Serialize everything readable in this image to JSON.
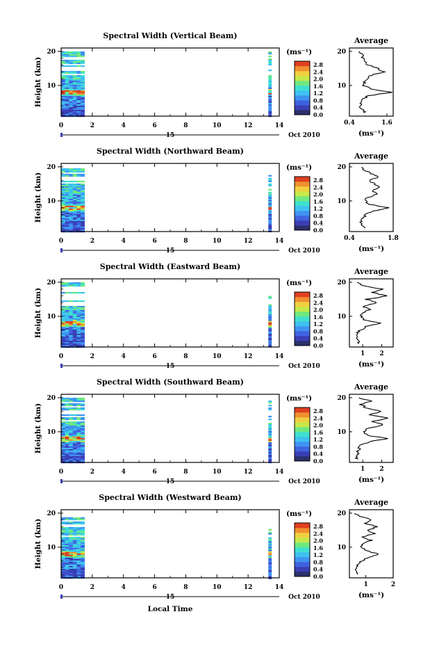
{
  "page": {
    "x_title": "Local Time",
    "shared": {
      "ylabel": "Height (km)",
      "yticks": [
        "20",
        "10"
      ],
      "xticks": [
        "0",
        "2",
        "4",
        "6",
        "8",
        "10",
        "12",
        "14"
      ],
      "day_label": "15",
      "date_label": "Oct 2010",
      "cb_title": "(ms⁻¹)",
      "cb_labels": [
        "2.8",
        "2.4",
        "2.0",
        "1.6",
        "1.2",
        "0.8",
        "0.4",
        "0.0"
      ],
      "avg_title": "Average",
      "avg_xlabel": "(ms⁻¹)"
    }
  },
  "colors": {
    "colormap": [
      "#2b2f6b",
      "#3a3fb5",
      "#3f63e0",
      "#3f93f0",
      "#3fc1f0",
      "#3fe0d0",
      "#70e880",
      "#c6e84a",
      "#f0d040",
      "#f09030",
      "#e04020"
    ]
  },
  "chart_data": [
    {
      "type": "heatmap",
      "title": "Spectral Width (Vertical Beam)",
      "xlabel": "Local Time",
      "ylabel": "Height (km)",
      "xlim": [
        0,
        14
      ],
      "ylim": [
        1,
        21
      ],
      "colorbar": {
        "range": [
          0.0,
          3.0
        ],
        "ticks": [
          0.0,
          0.4,
          0.8,
          1.2,
          1.6,
          2.0,
          2.4,
          2.8
        ]
      },
      "data_blocks": [
        {
          "x": [
            0,
            1.5
          ],
          "top_km": 20
        },
        {
          "x": [
            13.3,
            13.5
          ],
          "top_km": 20
        }
      ],
      "avg_profile": {
        "title": "Average",
        "xticks": [
          "0.4",
          "1.6"
        ],
        "xlim": [
          0.4,
          1.8
        ],
        "height": [
          2,
          3,
          4,
          5,
          6,
          7,
          8,
          9,
          10,
          11,
          12,
          13,
          14,
          15,
          16,
          17,
          18,
          19,
          20
        ],
        "value": [
          0.9,
          0.8,
          0.75,
          0.8,
          0.85,
          1.0,
          1.75,
          1.1,
          0.85,
          0.9,
          1.0,
          1.1,
          1.5,
          1.3,
          1.0,
          0.9,
          0.85,
          0.8,
          0.7
        ]
      }
    },
    {
      "type": "heatmap",
      "title": "Spectral Width (Northward Beam)",
      "xlabel": "Local Time",
      "ylabel": "Height (km)",
      "xlim": [
        0,
        14
      ],
      "ylim": [
        1,
        21
      ],
      "colorbar": {
        "range": [
          0.0,
          3.0
        ],
        "ticks": [
          0.0,
          0.4,
          0.8,
          1.2,
          1.6,
          2.0,
          2.4,
          2.8
        ]
      },
      "data_blocks": [
        {
          "x": [
            0,
            1.5
          ],
          "top_km": 20
        },
        {
          "x": [
            13.3,
            13.5
          ],
          "top_km": 18
        }
      ],
      "avg_profile": {
        "title": "Average",
        "xticks": [
          "0.4",
          "1.8"
        ],
        "xlim": [
          0.4,
          1.8
        ],
        "height": [
          2,
          3,
          4,
          5,
          6,
          7,
          8,
          9,
          10,
          11,
          12,
          13,
          14,
          15,
          16,
          17,
          18,
          19,
          20
        ],
        "value": [
          0.9,
          0.75,
          0.8,
          0.85,
          0.95,
          1.15,
          1.65,
          1.05,
          0.9,
          1.0,
          1.3,
          1.1,
          1.4,
          1.2,
          1.0,
          1.35,
          1.1,
          0.9,
          0.8
        ]
      }
    },
    {
      "type": "heatmap",
      "title": "Spectral Width (Eastward Beam)",
      "xlabel": "Local Time",
      "ylabel": "Height (km)",
      "xlim": [
        0,
        14
      ],
      "ylim": [
        1,
        21
      ],
      "colorbar": {
        "range": [
          0.0,
          3.0
        ],
        "ticks": [
          0.0,
          0.4,
          0.8,
          1.2,
          1.6,
          2.0,
          2.4,
          2.8
        ]
      },
      "data_blocks": [
        {
          "x": [
            0,
            1.5
          ],
          "top_km": 20
        },
        {
          "x": [
            13.3,
            13.5
          ],
          "top_km": 16
        }
      ],
      "avg_profile": {
        "title": "Average",
        "xticks": [
          "1",
          "2"
        ],
        "xlim": [
          0.3,
          2.6
        ],
        "height": [
          2,
          3,
          4,
          5,
          6,
          7,
          8,
          9,
          10,
          11,
          12,
          13,
          14,
          15,
          16,
          17,
          18,
          19,
          20
        ],
        "value": [
          0.8,
          0.7,
          0.8,
          0.7,
          0.9,
          1.2,
          1.9,
          1.1,
          0.9,
          1.0,
          1.4,
          1.0,
          1.8,
          1.2,
          2.3,
          1.5,
          2.0,
          1.0,
          0.7
        ]
      }
    },
    {
      "type": "heatmap",
      "title": "Spectral Width (Southward Beam)",
      "xlabel": "Local Time",
      "ylabel": "Height (km)",
      "xlim": [
        0,
        14
      ],
      "ylim": [
        1,
        21
      ],
      "colorbar": {
        "range": [
          0.0,
          3.0
        ],
        "ticks": [
          0.0,
          0.4,
          0.8,
          1.2,
          1.6,
          2.0,
          2.4,
          2.8
        ]
      },
      "data_blocks": [
        {
          "x": [
            0,
            1.5
          ],
          "top_km": 20
        },
        {
          "x": [
            13.3,
            13.5
          ],
          "top_km": 20
        }
      ],
      "avg_profile": {
        "title": "Average",
        "xticks": [
          "1",
          "2"
        ],
        "xlim": [
          0.3,
          2.6
        ],
        "height": [
          2,
          3,
          4,
          5,
          6,
          7,
          8,
          9,
          10,
          11,
          12,
          13,
          14,
          15,
          16,
          17,
          18,
          19,
          20
        ],
        "value": [
          0.7,
          0.7,
          0.75,
          0.8,
          0.9,
          1.3,
          2.3,
          1.2,
          1.0,
          1.3,
          2.1,
          1.5,
          2.3,
          1.4,
          1.9,
          1.2,
          0.9,
          1.4,
          0.8
        ]
      }
    },
    {
      "type": "heatmap",
      "title": "Spectral Width (Westward Beam)",
      "xlabel": "Local Time",
      "ylabel": "Height (km)",
      "xlim": [
        0,
        14
      ],
      "ylim": [
        1,
        21
      ],
      "colorbar": {
        "range": [
          0.0,
          3.0
        ],
        "ticks": [
          0.0,
          0.4,
          0.8,
          1.2,
          1.6,
          2.0,
          2.4,
          2.8
        ]
      },
      "data_blocks": [
        {
          "x": [
            0,
            1.5
          ],
          "top_km": 20
        },
        {
          "x": [
            13.3,
            13.5
          ],
          "top_km": 17
        }
      ],
      "avg_profile": {
        "title": "Average",
        "xticks": [
          "1",
          "2"
        ],
        "xlim": [
          0.4,
          2.0
        ],
        "height": [
          2,
          3,
          4,
          5,
          6,
          7,
          8,
          9,
          10,
          11,
          12,
          13,
          14,
          15,
          16,
          17,
          18,
          19,
          20
        ],
        "value": [
          0.7,
          0.6,
          0.65,
          0.7,
          0.85,
          1.1,
          1.5,
          1.0,
          0.85,
          0.9,
          1.2,
          0.9,
          1.3,
          1.1,
          1.4,
          1.0,
          1.2,
          0.8,
          0.6
        ]
      }
    }
  ]
}
